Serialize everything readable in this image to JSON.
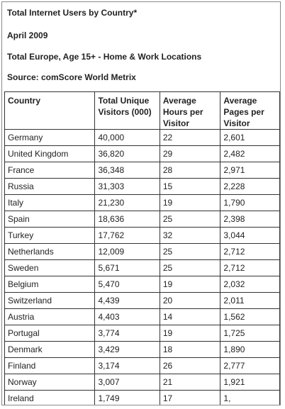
{
  "header": {
    "title": "Total Internet Users by Country*",
    "date": "April 2009",
    "scope": "Total Europe, Age 15+ - Home & Work Locations",
    "source": "Source: comScore World Metrix"
  },
  "table": {
    "columns": [
      "Country",
      "Total Unique Visitors (000)",
      "Average Hours per Visitor",
      "Average Pages per Visitor"
    ],
    "rows": [
      [
        "Germany",
        "40,000",
        "22",
        "2,601"
      ],
      [
        "United Kingdom",
        "36,820",
        "29",
        "2,482"
      ],
      [
        "France",
        "36,348",
        "28",
        "2,971"
      ],
      [
        "Russia",
        "31,303",
        "15",
        "2,228"
      ],
      [
        "Italy",
        "21,230",
        "19",
        "1,790"
      ],
      [
        "Spain",
        "18,636",
        "25",
        "2,398"
      ],
      [
        "Turkey",
        "17,762",
        "32",
        "3,044"
      ],
      [
        "Netherlands",
        "12,009",
        "25",
        "2,712"
      ],
      [
        "Sweden",
        "5,671",
        "25",
        "2,712"
      ],
      [
        "Belgium",
        "5,470",
        "19",
        "2,032"
      ],
      [
        "Switzerland",
        "4,439",
        "20",
        "2,011"
      ],
      [
        "Austria",
        "4,403",
        "14",
        "1,562"
      ],
      [
        "Portugal",
        "3,774",
        "19",
        "1,725"
      ],
      [
        "Denmark",
        "3,429",
        "18",
        "1,890"
      ],
      [
        "Finland",
        "3,174",
        "26",
        "2,777"
      ],
      [
        "Norway",
        "3,007",
        "21",
        "1,921"
      ],
      [
        "Ireland",
        "1,749",
        "17",
        "1,"
      ]
    ]
  }
}
